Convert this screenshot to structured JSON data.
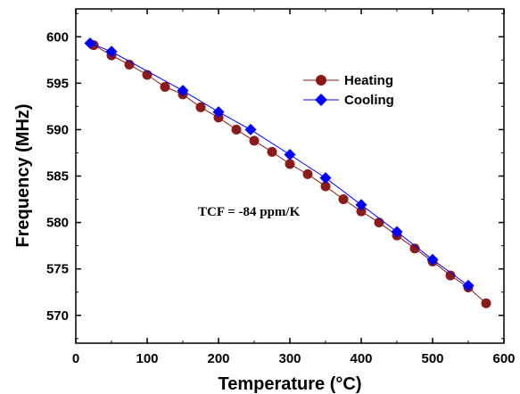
{
  "chart_data": {
    "type": "line",
    "title": "",
    "xlabel": "Temperature (°C)",
    "ylabel": "Frequency (MHz)",
    "xlim": [
      0,
      600
    ],
    "ylim": [
      567,
      603
    ],
    "xticks": [
      0,
      100,
      200,
      300,
      400,
      500,
      600
    ],
    "yticks": [
      570,
      575,
      580,
      585,
      590,
      595,
      600
    ],
    "grid": false,
    "legend_position": "top-right",
    "annotation": "TCF = -84 ppm/K",
    "series": [
      {
        "name": "Heating",
        "color": "#8b1a1a",
        "marker": "circle",
        "x": [
          25,
          50,
          75,
          100,
          125,
          150,
          175,
          200,
          225,
          250,
          275,
          300,
          325,
          350,
          375,
          400,
          425,
          450,
          475,
          500,
          525,
          550,
          575
        ],
        "y": [
          599.1,
          598.0,
          597.0,
          595.9,
          594.6,
          593.8,
          592.4,
          591.3,
          590.0,
          588.8,
          587.6,
          586.3,
          585.2,
          583.9,
          582.5,
          581.2,
          580.0,
          578.6,
          577.2,
          575.8,
          574.3,
          573.0,
          571.3
        ]
      },
      {
        "name": "Cooling",
        "color": "#0000ff",
        "marker": "diamond",
        "x": [
          20,
          50,
          150,
          200,
          245,
          300,
          350,
          400,
          450,
          500,
          550
        ],
        "y": [
          599.3,
          598.4,
          594.2,
          591.9,
          590.0,
          587.3,
          584.8,
          581.9,
          579.0,
          576.0,
          573.2
        ]
      }
    ]
  }
}
